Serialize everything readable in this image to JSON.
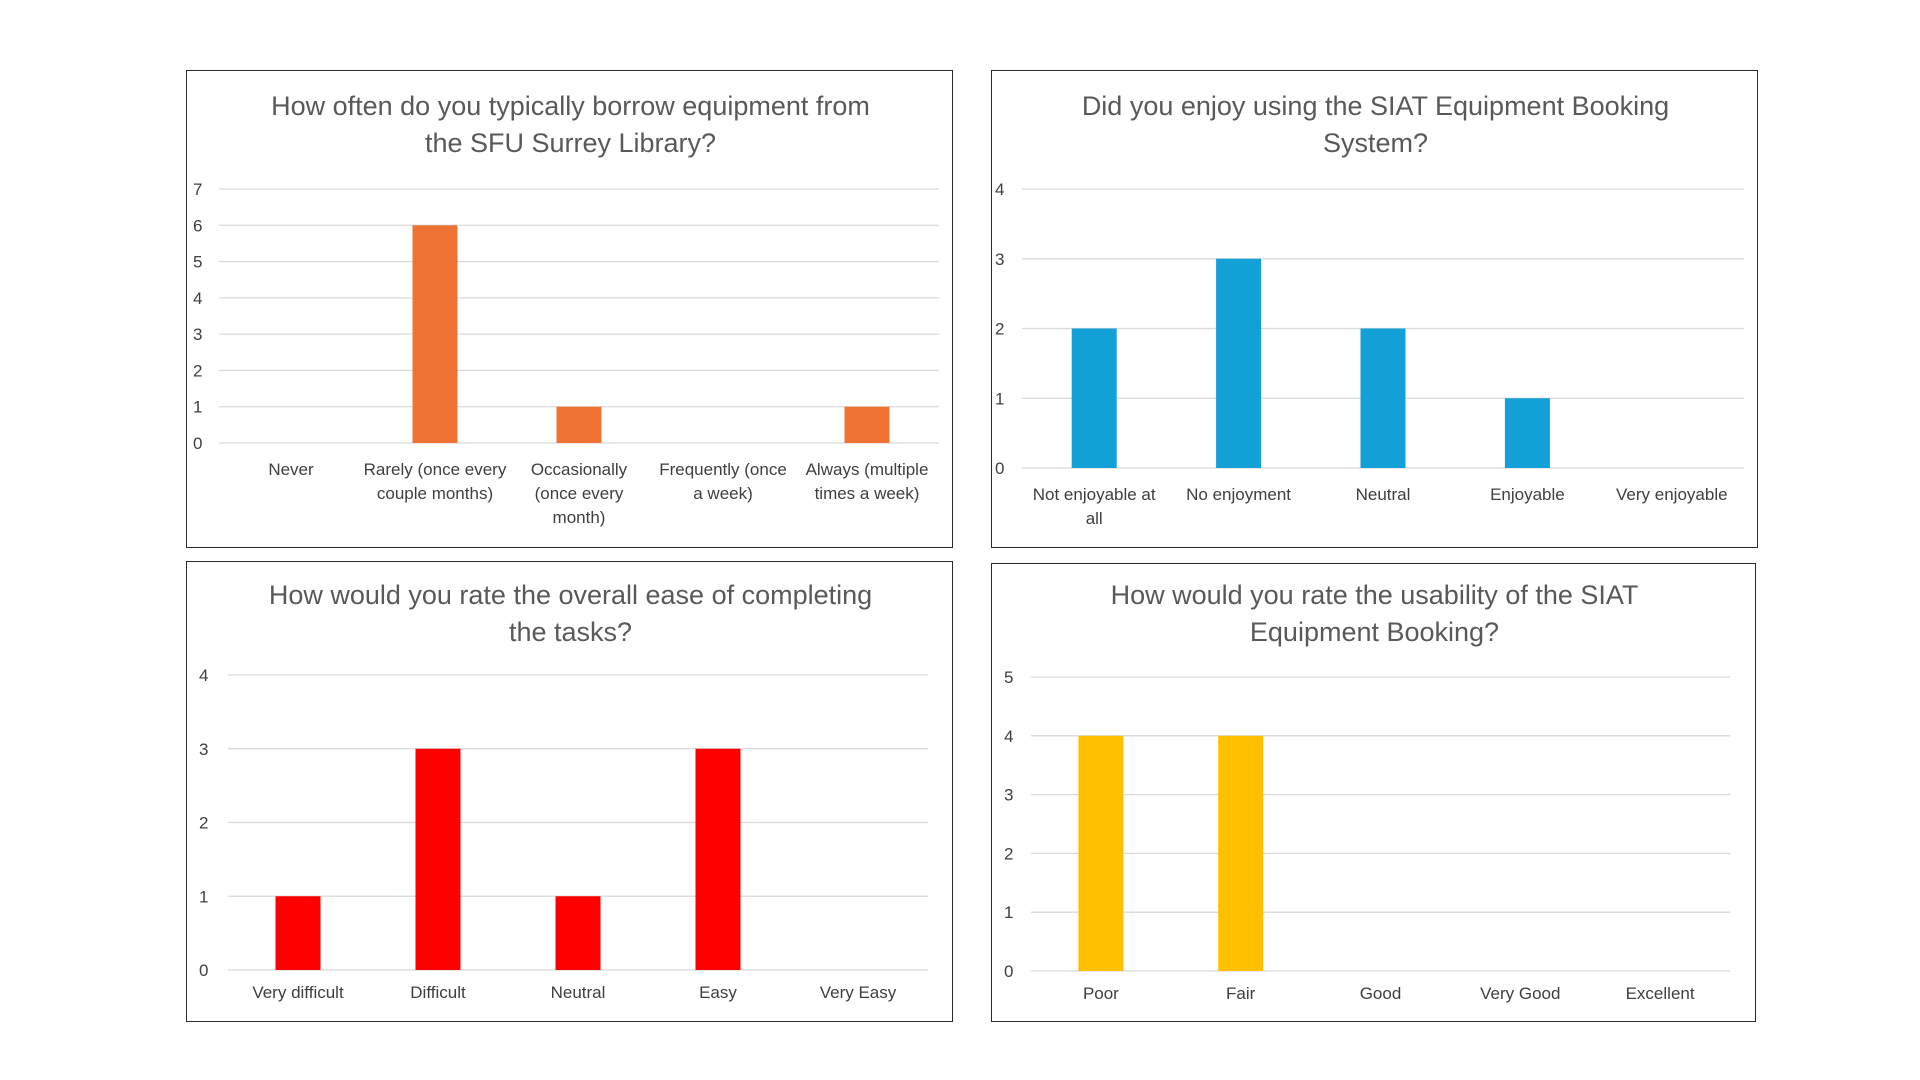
{
  "chart_data": [
    {
      "type": "bar",
      "title": "How often do you typically borrow equipment from the SFU Surrey Library?",
      "title_lines": [
        "How often do you typically borrow equipment from",
        "the SFU Surrey Library?"
      ],
      "categories": [
        "Never",
        "Rarely (once every couple months)",
        "Occasionally (once every month)",
        "Frequently (once a week)",
        "Always (multiple times a week)"
      ],
      "category_lines": [
        [
          "Never"
        ],
        [
          "Rarely (once every",
          "couple months)"
        ],
        [
          "Occasionally",
          "(once every",
          "month)"
        ],
        [
          "Frequently (once",
          "a week)"
        ],
        [
          "Always (multiple",
          "times a week)"
        ]
      ],
      "values": [
        0,
        6,
        1,
        0,
        1
      ],
      "ylim": [
        0,
        7
      ],
      "yticks": [
        0,
        1,
        2,
        3,
        4,
        5,
        6,
        7
      ],
      "color": "#ED7233",
      "grid": true,
      "xlabel": "",
      "ylabel": ""
    },
    {
      "type": "bar",
      "title": "Did you enjoy using the SIAT Equipment Booking System?",
      "title_lines": [
        "Did you enjoy using the SIAT Equipment Booking",
        "System?"
      ],
      "categories": [
        "Not enjoyable at all",
        "No enjoyment",
        "Neutral",
        "Enjoyable",
        "Very enjoyable"
      ],
      "category_lines": [
        [
          "Not enjoyable at",
          "all"
        ],
        [
          "No enjoyment"
        ],
        [
          "Neutral"
        ],
        [
          "Enjoyable"
        ],
        [
          "Very enjoyable"
        ]
      ],
      "values": [
        2,
        3,
        2,
        1,
        0
      ],
      "ylim": [
        0,
        4
      ],
      "yticks": [
        0,
        1,
        2,
        3,
        4
      ],
      "color": "#12A0D7",
      "grid": true,
      "xlabel": "",
      "ylabel": ""
    },
    {
      "type": "bar",
      "title": "How would you rate the overall ease of completing the tasks?",
      "title_lines": [
        "How would you rate the overall ease of completing",
        "the tasks?"
      ],
      "categories": [
        "Very difficult",
        "Difficult",
        "Neutral",
        "Easy",
        "Very Easy"
      ],
      "category_lines": [
        [
          "Very difficult"
        ],
        [
          "Difficult"
        ],
        [
          "Neutral"
        ],
        [
          "Easy"
        ],
        [
          "Very Easy"
        ]
      ],
      "values": [
        1,
        3,
        1,
        3,
        0
      ],
      "ylim": [
        0,
        4
      ],
      "yticks": [
        0,
        1,
        2,
        3,
        4
      ],
      "color": "#FF0000",
      "grid": true,
      "xlabel": "",
      "ylabel": ""
    },
    {
      "type": "bar",
      "title": "How would you rate the usability of the SIAT Equipment Booking?",
      "title_lines": [
        "How would you rate the usability of the SIAT",
        "Equipment Booking?"
      ],
      "categories": [
        "Poor",
        "Fair",
        "Good",
        "Very Good",
        "Excellent"
      ],
      "category_lines": [
        [
          "Poor"
        ],
        [
          "Fair"
        ],
        [
          "Good"
        ],
        [
          "Very Good"
        ],
        [
          "Excellent"
        ]
      ],
      "values": [
        4,
        4,
        0,
        0,
        0
      ],
      "ylim": [
        0,
        5
      ],
      "yticks": [
        0,
        1,
        2,
        3,
        4,
        5
      ],
      "color": "#FFC000",
      "grid": true,
      "xlabel": "",
      "ylabel": ""
    }
  ]
}
